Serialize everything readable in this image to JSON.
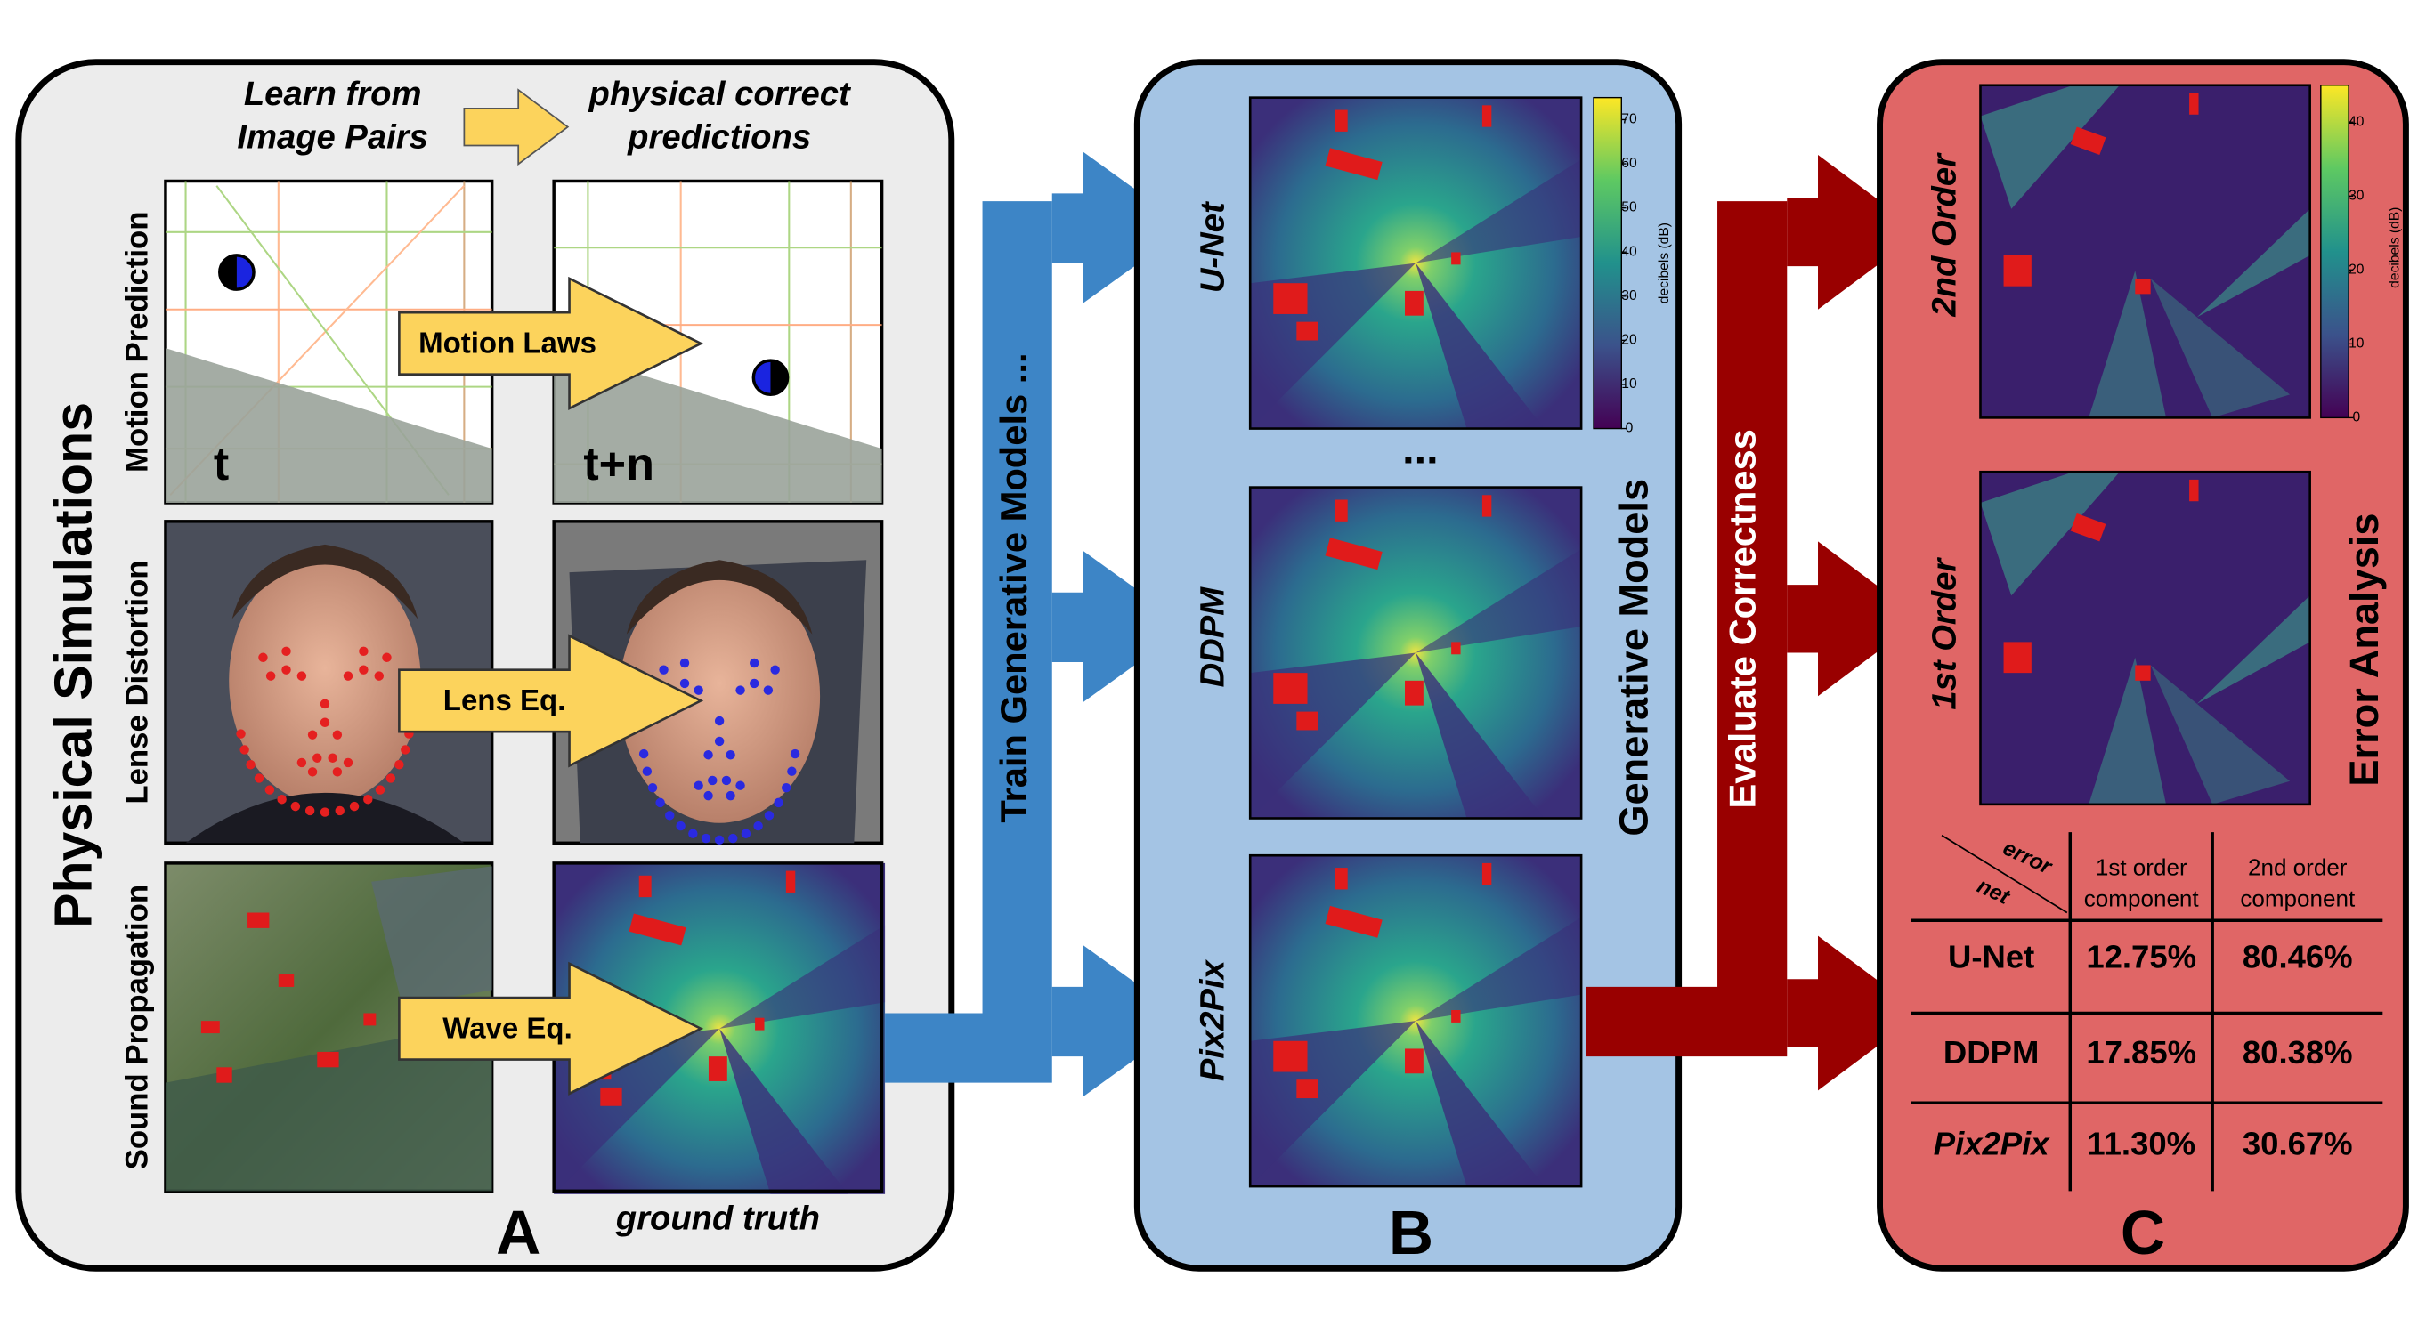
{
  "panel_a": {
    "title": "Physical Simulations",
    "header_left": [
      "Learn from",
      "Image Pairs"
    ],
    "header_right": [
      "physical correct",
      "predictions"
    ],
    "rows": [
      {
        "label": "Motion Prediction",
        "arrow": "Motion Laws",
        "left_tag": "t",
        "right_tag": "t+n"
      },
      {
        "label": "Lense Distortion",
        "arrow": "Lens Eq."
      },
      {
        "label": "Sound Propagation",
        "arrow": "Wave Eq."
      }
    ],
    "caption": "ground truth",
    "letter": "A"
  },
  "arrow_ab": "Train Generative Models ...",
  "panel_b": {
    "models": [
      "U-Net",
      "DDPM",
      "Pix2Pix"
    ],
    "ellipsis": "...",
    "title": "Generative Models",
    "letter": "B",
    "colorbar": {
      "label": "decibels (dB)",
      "lim": [
        0,
        75
      ],
      "ticks": [
        0,
        10,
        20,
        30,
        40,
        50,
        60,
        70
      ]
    }
  },
  "arrow_bc": "Evaluate Correctness",
  "panel_c": {
    "rows": [
      "2nd Order",
      "1st Order"
    ],
    "title": "Error Analysis",
    "letter": "C",
    "colorbar": {
      "label": "decibels (dB)",
      "lim": [
        0,
        45
      ],
      "ticks": [
        0,
        10,
        20,
        30,
        40
      ]
    },
    "table": {
      "corner": [
        "error",
        "net"
      ],
      "columns": [
        [
          "1st order",
          "component"
        ],
        [
          "2nd order",
          "component"
        ]
      ],
      "rows": [
        [
          "U-Net",
          "12.75%",
          "80.46%"
        ],
        [
          "DDPM",
          "17.85%",
          "80.38%"
        ],
        [
          "Pix2Pix",
          "11.30%",
          "30.67%"
        ]
      ]
    }
  }
}
